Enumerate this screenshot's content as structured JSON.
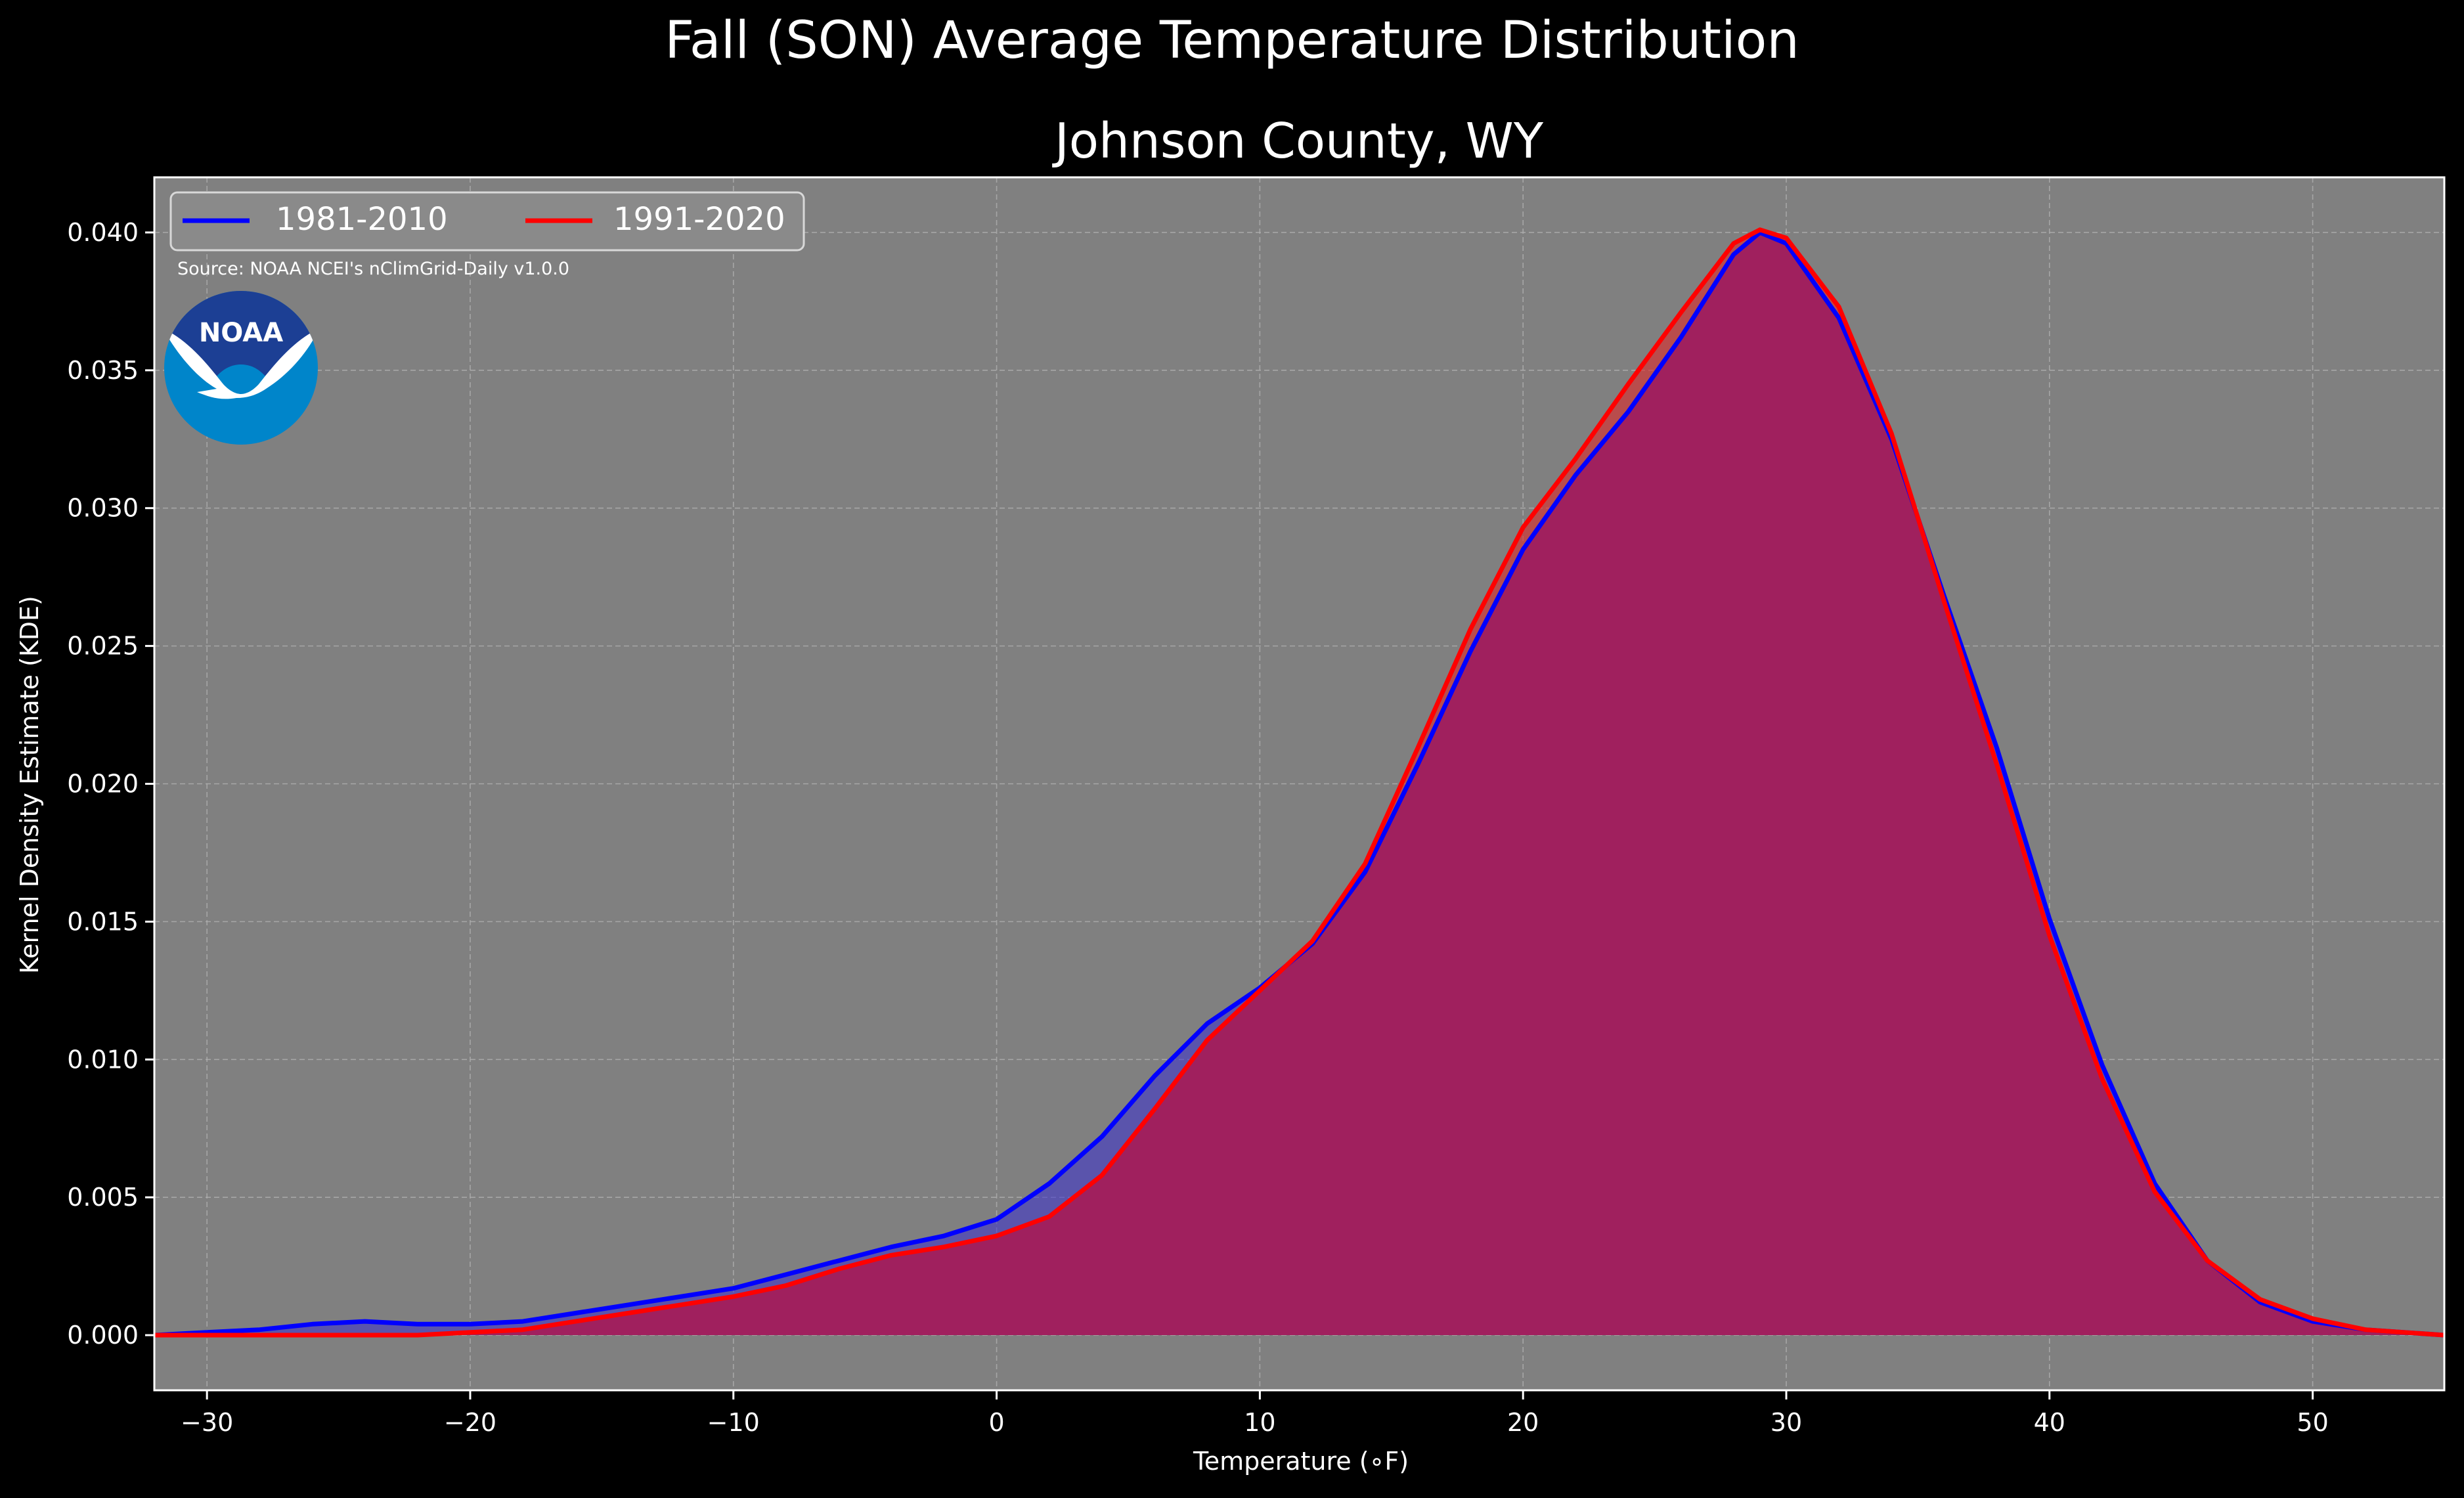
{
  "suptitle": "Fall (SON) Average Temperature Distribution",
  "chart_data": {
    "type": "area",
    "title": "Johnson County, WY",
    "xlabel": "Temperature (∘F)",
    "ylabel": "Kernel Density Estimate (KDE)",
    "xlim": [
      -32,
      55
    ],
    "ylim": [
      -0.002,
      0.042
    ],
    "xticks": [
      -30,
      -20,
      -10,
      0,
      10,
      20,
      30,
      40,
      50
    ],
    "xtick_labels": [
      "−30",
      "−20",
      "−10",
      "0",
      "10",
      "20",
      "30",
      "40",
      "50"
    ],
    "yticks": [
      0.0,
      0.005,
      0.01,
      0.015,
      0.02,
      0.025,
      0.03,
      0.035,
      0.04
    ],
    "ytick_labels": [
      "0.000",
      "0.005",
      "0.010",
      "0.015",
      "0.020",
      "0.025",
      "0.030",
      "0.035",
      "0.040"
    ],
    "grid": true,
    "legend_position": "top-left",
    "source_note": "Source: NOAA NCEI's nClimGrid-Daily v1.0.0",
    "logo_text": "NOAA",
    "colors": {
      "background": "#000000",
      "plot_background": "#808080",
      "series_1": "#0000ff",
      "series_2": "#ff0000",
      "overlap_fill": "#a0205e",
      "grid": "#b0b0b0",
      "logo_dark": "#1c3f94",
      "logo_light": "#0085ca"
    },
    "series": [
      {
        "name": "1981-2010",
        "color": "#0000ff",
        "x": [
          -32,
          -30,
          -28,
          -26,
          -24,
          -22,
          -20,
          -18,
          -16,
          -14,
          -12,
          -10,
          -8,
          -6,
          -4,
          -2,
          0,
          2,
          4,
          6,
          8,
          10,
          12,
          14,
          16,
          18,
          20,
          22,
          24,
          26,
          28,
          29,
          30,
          32,
          34,
          36,
          38,
          40,
          42,
          44,
          46,
          48,
          50,
          52,
          55
        ],
        "y": [
          0.0,
          0.0001,
          0.0002,
          0.0004,
          0.0005,
          0.0004,
          0.0004,
          0.0005,
          0.0008,
          0.0011,
          0.0014,
          0.0017,
          0.0022,
          0.0027,
          0.0032,
          0.0036,
          0.0042,
          0.0055,
          0.0072,
          0.0094,
          0.0113,
          0.0126,
          0.0142,
          0.0168,
          0.0207,
          0.0248,
          0.0285,
          0.0312,
          0.0335,
          0.0362,
          0.0392,
          0.04,
          0.0396,
          0.0369,
          0.0325,
          0.0268,
          0.0213,
          0.0151,
          0.0098,
          0.0055,
          0.0027,
          0.0012,
          0.0005,
          0.0002,
          0.0
        ]
      },
      {
        "name": "1991-2020",
        "color": "#ff0000",
        "x": [
          -32,
          -30,
          -28,
          -26,
          -24,
          -22,
          -20,
          -18,
          -16,
          -14,
          -12,
          -10,
          -8,
          -6,
          -4,
          -2,
          0,
          2,
          4,
          6,
          8,
          10,
          12,
          14,
          16,
          18,
          20,
          22,
          24,
          26,
          28,
          29,
          30,
          32,
          34,
          36,
          38,
          40,
          42,
          44,
          46,
          48,
          50,
          52,
          55
        ],
        "y": [
          0.0,
          0.0,
          0.0,
          0.0,
          0.0,
          0.0,
          0.0001,
          0.0002,
          0.0005,
          0.0008,
          0.0011,
          0.0014,
          0.0018,
          0.0024,
          0.0029,
          0.0032,
          0.0036,
          0.0043,
          0.0058,
          0.0082,
          0.0107,
          0.0125,
          0.0143,
          0.0171,
          0.0213,
          0.0256,
          0.0293,
          0.0318,
          0.0345,
          0.0371,
          0.0396,
          0.0401,
          0.0398,
          0.0373,
          0.0327,
          0.0266,
          0.0207,
          0.0145,
          0.0093,
          0.0052,
          0.0027,
          0.0013,
          0.0006,
          0.0002,
          0.0
        ]
      }
    ]
  }
}
